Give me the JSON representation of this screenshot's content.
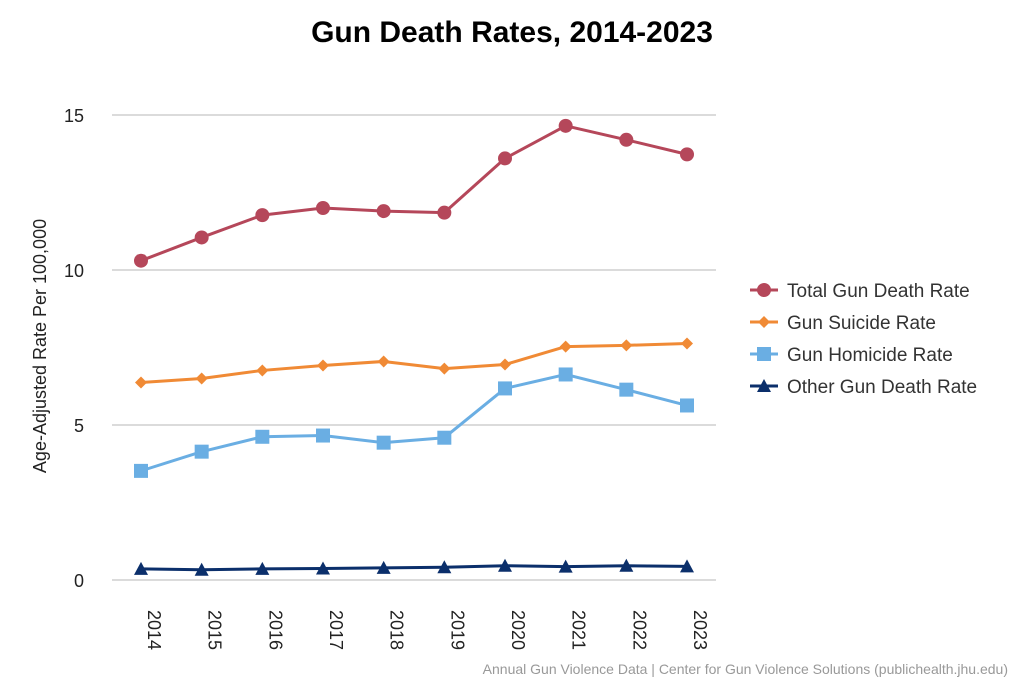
{
  "chart_data": {
    "type": "line",
    "title": "Gun Death Rates, 2014-2023",
    "xlabel": "",
    "ylabel": "Age-Adjusted Rate Per 100,000",
    "categories": [
      "2014",
      "2015",
      "2016",
      "2017",
      "2018",
      "2019",
      "2020",
      "2021",
      "2022",
      "2023"
    ],
    "ylim": [
      0,
      15
    ],
    "yticks": [
      0,
      5,
      10,
      15
    ],
    "grid": true,
    "legend_position": "right",
    "series": [
      {
        "name": "Total Gun Death Rate",
        "color": "#b5475a",
        "marker": "circle",
        "values": [
          10.3,
          11.05,
          11.77,
          12.0,
          11.9,
          11.85,
          13.6,
          14.65,
          14.2,
          13.73
        ]
      },
      {
        "name": "Gun Suicide Rate",
        "color": "#f08a35",
        "marker": "diamond",
        "values": [
          6.37,
          6.5,
          6.76,
          6.92,
          7.05,
          6.82,
          6.95,
          7.53,
          7.57,
          7.63
        ]
      },
      {
        "name": "Gun Homicide Rate",
        "color": "#6aaee3",
        "marker": "square",
        "values": [
          3.52,
          4.14,
          4.62,
          4.66,
          4.43,
          4.59,
          6.18,
          6.63,
          6.14,
          5.63
        ]
      },
      {
        "name": "Other Gun Death Rate",
        "color": "#0b2f6b",
        "marker": "triangle",
        "values": [
          0.36,
          0.33,
          0.36,
          0.37,
          0.39,
          0.41,
          0.46,
          0.43,
          0.46,
          0.44
        ]
      }
    ],
    "source": "Annual Gun Violence Data | Center for Gun Violence Solutions (publichealth.jhu.edu)"
  }
}
